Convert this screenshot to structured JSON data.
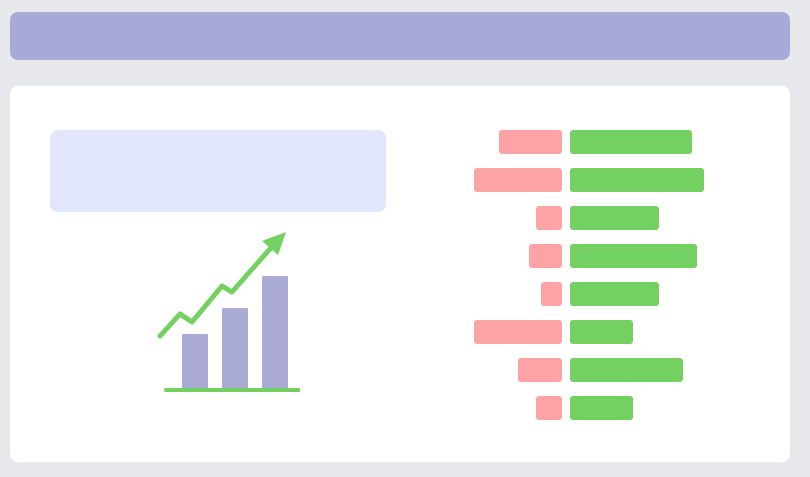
{
  "colors": {
    "background": "#e7e8ec",
    "header_bar": "#a7a9d6",
    "card": "#ffffff",
    "placeholder": "#e1e6fc",
    "illustration_bars": "#abacd6",
    "illustration_trend": "#74d161",
    "negative": "#fda3a5",
    "positive": "#74d161"
  },
  "illustration": {
    "icon": "bar-chart-growth-icon"
  },
  "chart_data": {
    "type": "bar",
    "orientation": "horizontal-diverging",
    "legend": false,
    "grid": false,
    "categories": [
      "",
      "",
      "",
      "",
      "",
      "",
      "",
      ""
    ],
    "series": [
      {
        "values": [
          -63,
          -88,
          -26,
          -33,
          -21,
          -88,
          -44,
          -26
        ]
      },
      {
        "values": [
          122,
          134,
          89,
          127,
          89,
          63,
          113,
          63
        ]
      }
    ],
    "xlim": [
      -90,
      140
    ]
  }
}
